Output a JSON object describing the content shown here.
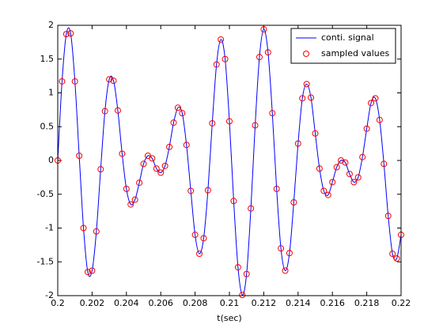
{
  "chart_data": {
    "type": "line",
    "xlabel": "t(sec)",
    "x": [
      0.2,
      0.20025,
      0.2005,
      0.20075,
      0.201,
      0.20125,
      0.2015,
      0.20175,
      0.202,
      0.20225,
      0.2025,
      0.20275,
      0.203,
      0.20325,
      0.2035,
      0.20375,
      0.204,
      0.20425,
      0.2045,
      0.20475,
      0.205,
      0.20525,
      0.2055,
      0.20575,
      0.206,
      0.20625,
      0.2065,
      0.20675,
      0.207,
      0.20725,
      0.2075,
      0.20775,
      0.208,
      0.20825,
      0.2085,
      0.20875,
      0.209,
      0.20925,
      0.2095,
      0.20975,
      0.21,
      0.21025,
      0.2105,
      0.21075,
      0.211,
      0.21125,
      0.2115,
      0.21175,
      0.212,
      0.21225,
      0.2125,
      0.21275,
      0.213,
      0.21325,
      0.2135,
      0.21375,
      0.214,
      0.21425,
      0.2145,
      0.21475,
      0.215,
      0.21525,
      0.2155,
      0.21575,
      0.216,
      0.21625,
      0.2165,
      0.21675,
      0.217,
      0.21725,
      0.2175,
      0.21775,
      0.218,
      0.21825,
      0.2185,
      0.21875,
      0.219,
      0.21925,
      0.2195,
      0.21975,
      0.22
    ],
    "series": [
      {
        "name": "conti. signal",
        "color": "#0000ff",
        "mode": "line",
        "values": [
          0,
          1.17,
          1.87,
          1.88,
          1.17,
          0.07,
          -1.0,
          -1.65,
          -1.63,
          -1.05,
          -0.13,
          0.73,
          1.2,
          1.18,
          0.74,
          0.1,
          -0.42,
          -0.65,
          -0.58,
          -0.33,
          -0.05,
          0.07,
          0.03,
          -0.12,
          -0.18,
          -0.08,
          0.2,
          0.56,
          0.78,
          0.7,
          0.23,
          -0.45,
          -1.1,
          -1.38,
          -1.15,
          -0.44,
          0.55,
          1.42,
          1.79,
          1.5,
          0.58,
          -0.6,
          -1.58,
          -1.99,
          -1.68,
          -0.71,
          0.52,
          1.53,
          1.94,
          1.6,
          0.7,
          -0.42,
          -1.3,
          -1.63,
          -1.37,
          -0.62,
          0.25,
          0.92,
          1.13,
          0.93,
          0.4,
          -0.12,
          -0.45,
          -0.51,
          -0.32,
          -0.1,
          0,
          -0.03,
          -0.2,
          -0.32,
          -0.25,
          0.05,
          0.47,
          0.85,
          0.92,
          0.6,
          -0.05,
          -0.82,
          -1.38,
          -1.45,
          -1.1
        ]
      },
      {
        "name": "sampled values",
        "color": "#ff0000",
        "mode": "markers",
        "values": [
          0,
          1.17,
          1.87,
          1.88,
          1.17,
          0.07,
          -1.0,
          -1.65,
          -1.63,
          -1.05,
          -0.13,
          0.73,
          1.2,
          1.18,
          0.74,
          0.1,
          -0.42,
          -0.65,
          -0.58,
          -0.33,
          -0.05,
          0.07,
          0.03,
          -0.12,
          -0.18,
          -0.08,
          0.2,
          0.56,
          0.78,
          0.7,
          0.23,
          -0.45,
          -1.1,
          -1.38,
          -1.15,
          -0.44,
          0.55,
          1.42,
          1.79,
          1.5,
          0.58,
          -0.6,
          -1.58,
          -1.99,
          -1.68,
          -0.71,
          0.52,
          1.53,
          1.94,
          1.6,
          0.7,
          -0.42,
          -1.3,
          -1.63,
          -1.37,
          -0.62,
          0.25,
          0.92,
          1.13,
          0.93,
          0.4,
          -0.12,
          -0.45,
          -0.51,
          -0.32,
          -0.1,
          0,
          -0.03,
          -0.2,
          -0.32,
          -0.25,
          0.05,
          0.47,
          0.85,
          0.92,
          0.6,
          -0.05,
          -0.82,
          -1.38,
          -1.45,
          -1.1
        ]
      }
    ],
    "xlim": [
      0.2,
      0.22
    ],
    "xticks": [
      0.2,
      0.202,
      0.204,
      0.206,
      0.208,
      0.21,
      0.212,
      0.214,
      0.216,
      0.218,
      0.22
    ],
    "ylim": [
      -2,
      2
    ],
    "yticks": [
      -2,
      -1.5,
      -1,
      -0.5,
      0,
      0.5,
      1,
      1.5,
      2
    ],
    "grid": false,
    "legend": "upper-right"
  }
}
